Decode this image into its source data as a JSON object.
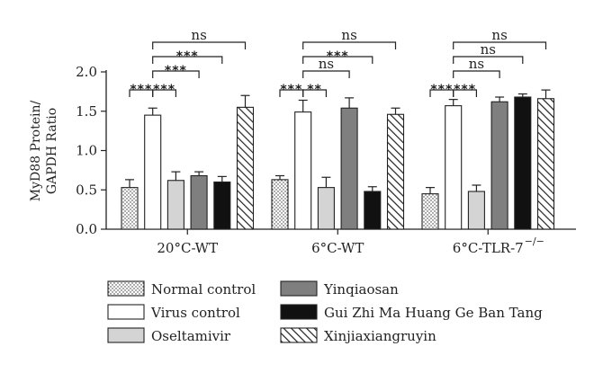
{
  "chart_data": {
    "type": "bar",
    "ylabel_line1": "MyD88 Protein/",
    "ylabel_line2": "GAPDH Ratio",
    "ylim": [
      0,
      2.0
    ],
    "yticks": [
      "0.0",
      "0.5",
      "1.0",
      "1.5",
      "2.0"
    ],
    "groups": [
      {
        "label": "20°C-WT",
        "sup": ""
      },
      {
        "label": "6°C-WT",
        "sup": ""
      },
      {
        "label": "6°C-TLR-7",
        "sup": "−/−"
      }
    ],
    "series": [
      {
        "name": "Normal control",
        "fill": "dotted",
        "values": [
          0.53,
          0.63,
          0.45
        ],
        "errors": [
          0.1,
          0.05,
          0.08
        ]
      },
      {
        "name": "Virus control",
        "fill": "white",
        "values": [
          1.45,
          1.49,
          1.57
        ],
        "errors": [
          0.09,
          0.15,
          0.08
        ]
      },
      {
        "name": "Oseltamivir",
        "fill": "#d4d4d4",
        "values": [
          0.62,
          0.53,
          0.48
        ],
        "errors": [
          0.11,
          0.13,
          0.08
        ]
      },
      {
        "name": "Yinqiaosan",
        "fill": "#7f7f7f",
        "values": [
          0.68,
          1.54,
          1.62
        ],
        "errors": [
          0.05,
          0.13,
          0.06
        ]
      },
      {
        "name": "Gui Zhi Ma Huang Ge Ban Tang",
        "fill": "#111111",
        "values": [
          0.6,
          0.48,
          1.68
        ],
        "errors": [
          0.07,
          0.06,
          0.04
        ]
      },
      {
        "name": "Xinjiaxiangruyin",
        "fill": "hatch",
        "values": [
          1.55,
          1.46,
          1.66
        ],
        "errors": [
          0.15,
          0.08,
          0.11
        ]
      }
    ],
    "significance": [
      [
        {
          "from": 0,
          "to": 1,
          "label": "***",
          "level": 0
        },
        {
          "from": 1,
          "to": 2,
          "label": "***",
          "level": 0
        },
        {
          "from": 1,
          "to": 3,
          "label": "***",
          "level": 1
        },
        {
          "from": 1,
          "to": 4,
          "label": "***",
          "level": 2
        },
        {
          "from": 1,
          "to": 5,
          "label": "ns",
          "level": 3
        }
      ],
      [
        {
          "from": 0,
          "to": 1,
          "label": "***",
          "level": 0
        },
        {
          "from": 1,
          "to": 2,
          "label": "**",
          "level": 0
        },
        {
          "from": 1,
          "to": 3,
          "label": "ns",
          "level": 1
        },
        {
          "from": 1,
          "to": 4,
          "label": "***",
          "level": 2
        },
        {
          "from": 1,
          "to": 5,
          "label": "ns",
          "level": 3
        }
      ],
      [
        {
          "from": 0,
          "to": 1,
          "label": "***",
          "level": 0
        },
        {
          "from": 1,
          "to": 2,
          "label": "***",
          "level": 0
        },
        {
          "from": 1,
          "to": 3,
          "label": "ns",
          "level": 1
        },
        {
          "from": 1,
          "to": 4,
          "label": "ns",
          "level": 2
        },
        {
          "from": 1,
          "to": 5,
          "label": "ns",
          "level": 3
        }
      ]
    ],
    "legend_columns": [
      [
        0,
        1,
        2
      ],
      [
        3,
        4,
        5
      ]
    ]
  }
}
